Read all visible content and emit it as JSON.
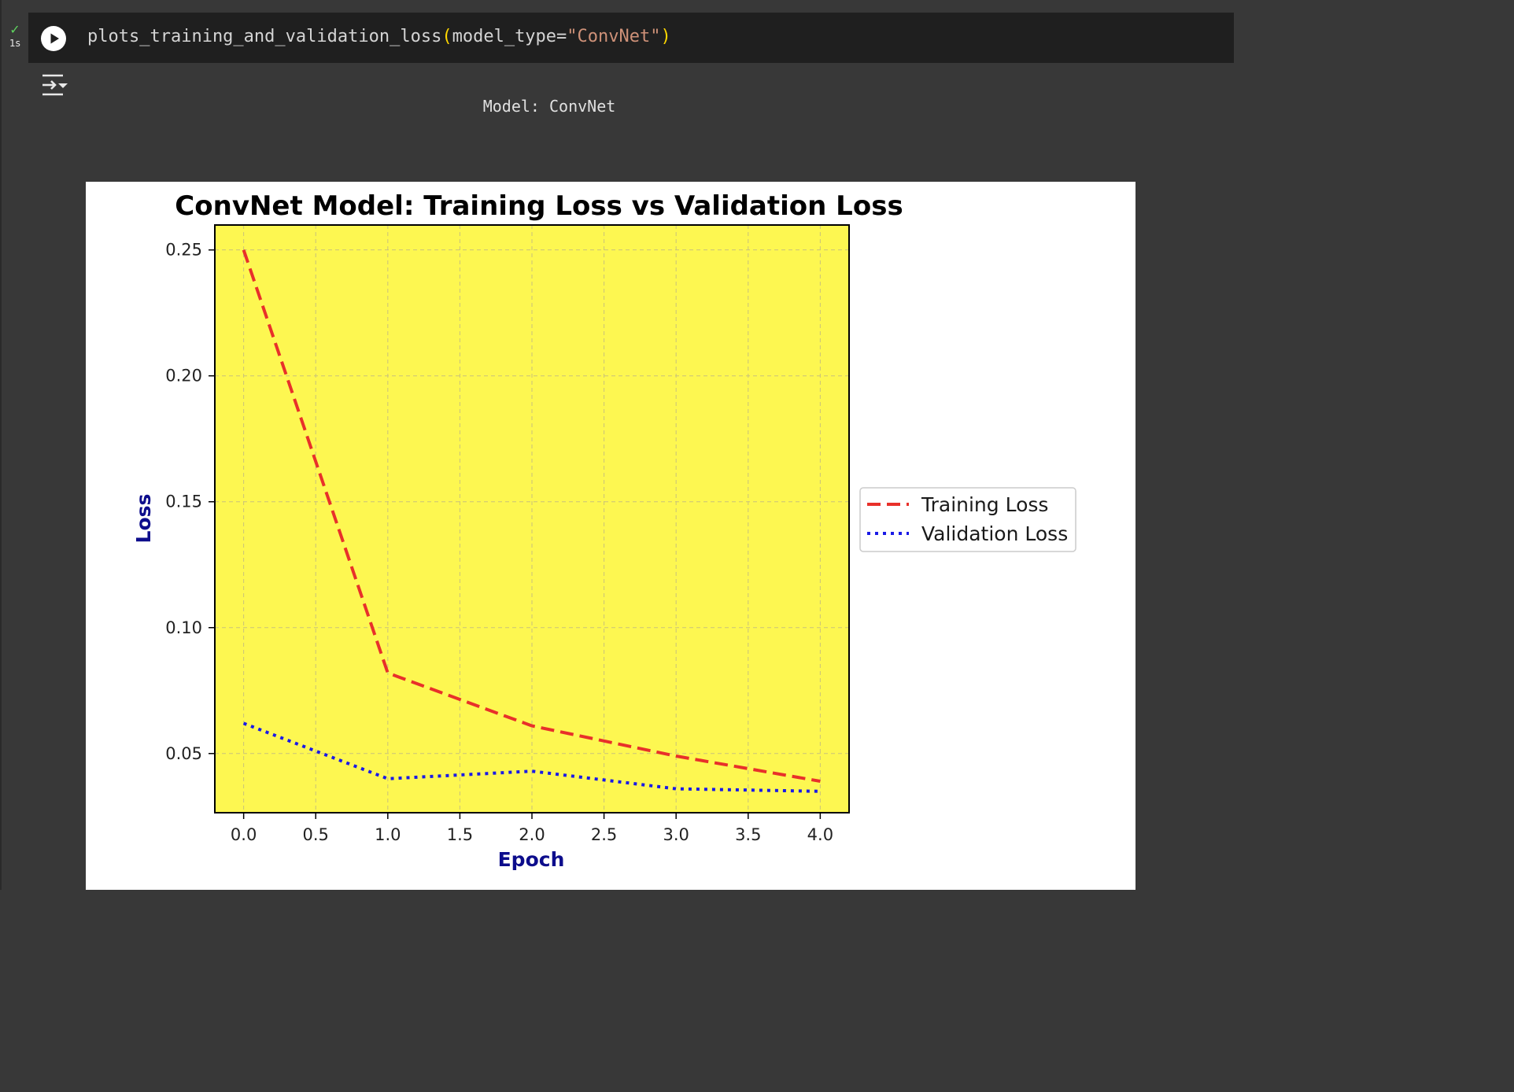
{
  "cell": {
    "status": {
      "icon": "check-icon",
      "check_symbol": "✓",
      "time": "1s"
    },
    "run_button_icon": "play-icon",
    "code": {
      "function": "plots_training_and_validation_loss",
      "open_paren": "(",
      "arg_name": "model_type=",
      "arg_value": "\"ConvNet\"",
      "close_paren": ")"
    },
    "output_toggle_icon": "output-collapse-icon"
  },
  "output": {
    "model_line": "Model: ConvNet"
  },
  "colors": {
    "plot_background": "#fdf751",
    "training_line": "#e8302a",
    "validation_line": "#1a1ae6",
    "axis_label": "#0d0d8c"
  },
  "chart_data": {
    "type": "line",
    "title": "ConvNet Model: Training Loss vs Validation Loss",
    "xlabel": "Epoch",
    "ylabel": "Loss",
    "x": [
      0,
      1,
      2,
      3,
      4
    ],
    "xlim": [
      -0.2,
      4.2
    ],
    "ylim": [
      0.0265,
      0.2599
    ],
    "xticks": [
      0.0,
      0.5,
      1.0,
      1.5,
      2.0,
      2.5,
      3.0,
      3.5,
      4.0
    ],
    "xtick_labels": [
      "0.0",
      "0.5",
      "1.0",
      "1.5",
      "2.0",
      "2.5",
      "3.0",
      "3.5",
      "4.0"
    ],
    "yticks": [
      0.05,
      0.1,
      0.15,
      0.2,
      0.25
    ],
    "ytick_labels": [
      "0.05",
      "0.10",
      "0.15",
      "0.20",
      "0.25"
    ],
    "grid": true,
    "legend_position": "outside right",
    "series": [
      {
        "name": "Training Loss",
        "style": "dashed",
        "values": [
          0.25,
          0.082,
          0.061,
          0.049,
          0.039
        ]
      },
      {
        "name": "Validation Loss",
        "style": "dotted",
        "values": [
          0.062,
          0.04,
          0.043,
          0.036,
          0.035
        ]
      }
    ]
  }
}
